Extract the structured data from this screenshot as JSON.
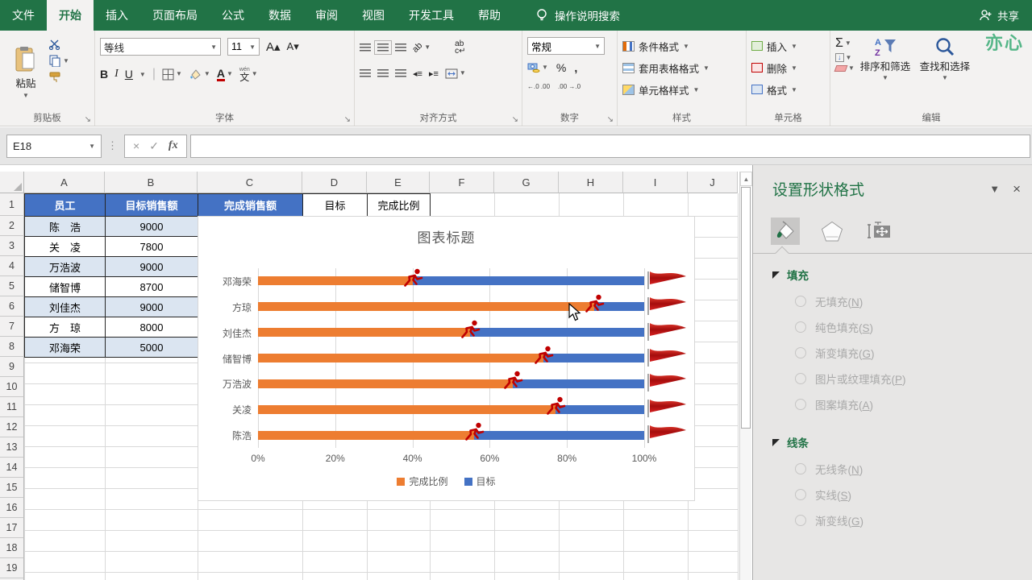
{
  "ribbon": {
    "tabs": [
      "文件",
      "开始",
      "插入",
      "页面布局",
      "公式",
      "数据",
      "审阅",
      "视图",
      "开发工具",
      "帮助"
    ],
    "selected_tab": "开始",
    "search_label": "操作说明搜索",
    "share_label": "共享",
    "watermark": "亦心",
    "clipboard": {
      "paste": "粘贴",
      "label": "剪贴板"
    },
    "font": {
      "name": "等线",
      "size": "11",
      "bold": "B",
      "italic": "I",
      "underline": "U",
      "wen": "文",
      "wen_pinyin": "wén",
      "label": "字体"
    },
    "alignment": {
      "wrap": "ab",
      "label": "对齐方式"
    },
    "number": {
      "format": "常规",
      "percent": "%",
      "comma": ",",
      "inc_decimal": "←.0 .00",
      "dec_decimal": ".00 →.0",
      "label": "数字"
    },
    "styles": {
      "conditional": "条件格式",
      "format_table": "套用表格格式",
      "cell_styles": "单元格样式",
      "label": "样式"
    },
    "cells": {
      "insert": "插入",
      "delete": "删除",
      "format": "格式",
      "label": "单元格"
    },
    "editing": {
      "autosum": "Σ",
      "sort": "排序和筛选",
      "find": "查找和选择",
      "label": "编辑"
    }
  },
  "formula_bar": {
    "name_box": "E18",
    "fx": "fx",
    "value": ""
  },
  "sheet": {
    "columns": [
      "A",
      "B",
      "C",
      "D",
      "E",
      "F",
      "G",
      "H",
      "I",
      "J"
    ],
    "visible_rows": 20,
    "table": {
      "headers": [
        "员工",
        "目标销售额",
        "完成销售额"
      ],
      "extra_headers": [
        "目标",
        "完成比例"
      ],
      "rows": [
        {
          "name": "陈　浩",
          "target": "9000"
        },
        {
          "name": "关　凌",
          "target": "7800"
        },
        {
          "name": "万浩波",
          "target": "9000"
        },
        {
          "name": "储智博",
          "target": "8700"
        },
        {
          "name": "刘佳杰",
          "target": "9000"
        },
        {
          "name": "方　琼",
          "target": "8000"
        },
        {
          "name": "邓海荣",
          "target": "5000"
        }
      ]
    }
  },
  "chart_data": {
    "type": "bar",
    "orientation": "horizontal-stacked",
    "title": "图表标题",
    "categories": [
      "邓海荣",
      "方琼",
      "刘佳杰",
      "储智博",
      "万浩波",
      "关凌",
      "陈浩"
    ],
    "series": [
      {
        "name": "完成比例",
        "color": "#ED7D31",
        "values": [
          40,
          87,
          55,
          74,
          66,
          77,
          56
        ]
      },
      {
        "name": "目标",
        "color": "#4472C4",
        "values": [
          60,
          13,
          45,
          26,
          34,
          23,
          44
        ]
      }
    ],
    "x_ticks": [
      "0%",
      "20%",
      "40%",
      "60%",
      "80%",
      "100%"
    ],
    "xlim": [
      0,
      100
    ],
    "grid": true,
    "legend_position": "bottom",
    "markers": {
      "runner_at_end_of": "完成比例",
      "flag_at": "100%"
    }
  },
  "panel": {
    "title": "设置形状格式",
    "tabs": [
      "fill-and-line",
      "effects",
      "size-and-properties"
    ],
    "fill_section": {
      "label": "填充",
      "options": [
        "无填充(N)",
        "纯色填充(S)",
        "渐变填充(G)",
        "图片或纹理填充(P)",
        "图案填充(A)"
      ]
    },
    "line_section": {
      "label": "线条",
      "options": [
        "无线条(N)",
        "实线(S)",
        "渐变线(G)"
      ]
    }
  }
}
